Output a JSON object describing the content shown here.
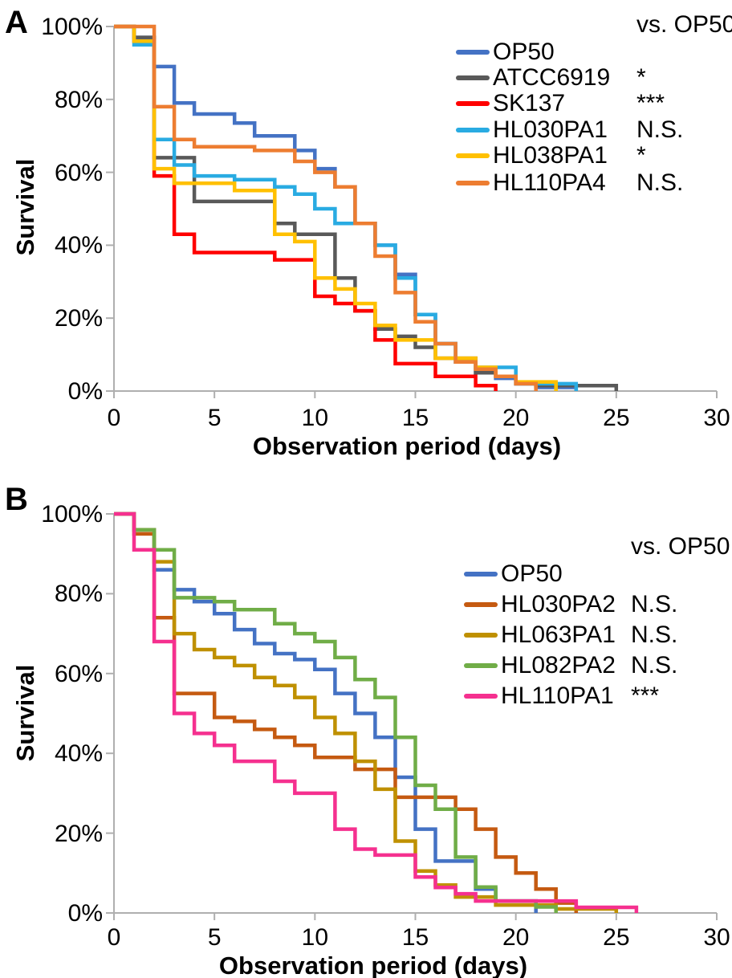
{
  "figure_title": "",
  "chart_data": [
    {
      "panel_label": "A",
      "type": "line",
      "subtype": "kaplan-meier-step-survival",
      "xlabel": "Observation period (days)",
      "ylabel": "Survival",
      "legend_header": "vs. OP50",
      "xlim": [
        0,
        30
      ],
      "x_tick_labels": [
        "0",
        "5",
        "10",
        "15",
        "20",
        "25",
        "30"
      ],
      "x_tick_values": [
        0,
        5,
        10,
        15,
        20,
        25,
        30
      ],
      "y_tick_labels": [
        "100%",
        "80%",
        "60%",
        "40%",
        "20%",
        "0%"
      ],
      "y_tick_values": [
        100,
        80,
        60,
        40,
        20,
        0
      ],
      "grid": false,
      "legend_position": "top-right",
      "series": [
        {
          "name": "OP50",
          "color": "#4472C4",
          "significance_vs_op50": "",
          "points_day_pct": [
            [
              0,
              100
            ],
            [
              1,
              97
            ],
            [
              2,
              89
            ],
            [
              3,
              79
            ],
            [
              4,
              76
            ],
            [
              6,
              73.5
            ],
            [
              7,
              70
            ],
            [
              9,
              66
            ],
            [
              10,
              61
            ],
            [
              11,
              56
            ],
            [
              12,
              46
            ],
            [
              13,
              40
            ],
            [
              14,
              32
            ],
            [
              15,
              21
            ],
            [
              16,
              13
            ],
            [
              17,
              8
            ],
            [
              18,
              5
            ],
            [
              19,
              3.5
            ],
            [
              20,
              2
            ],
            [
              21,
              1
            ],
            [
              23,
              0
            ]
          ]
        },
        {
          "name": "ATCC6919",
          "color": "#595959",
          "significance_vs_op50": "*",
          "points_day_pct": [
            [
              0,
              100
            ],
            [
              1,
              97
            ],
            [
              2,
              64
            ],
            [
              4,
              52
            ],
            [
              8,
              46
            ],
            [
              9,
              43
            ],
            [
              11,
              31
            ],
            [
              12,
              22
            ],
            [
              13,
              17
            ],
            [
              14,
              15
            ],
            [
              15,
              12
            ],
            [
              16,
              9
            ],
            [
              18,
              5
            ],
            [
              19,
              4
            ],
            [
              20,
              2
            ],
            [
              21,
              1.5
            ],
            [
              25,
              0
            ]
          ]
        },
        {
          "name": "SK137",
          "color": "#FF0000",
          "significance_vs_op50": "***",
          "points_day_pct": [
            [
              0,
              100
            ],
            [
              1,
              96
            ],
            [
              2,
              59
            ],
            [
              3,
              43
            ],
            [
              4,
              38
            ],
            [
              8,
              36
            ],
            [
              10,
              26
            ],
            [
              11,
              24
            ],
            [
              12,
              22
            ],
            [
              13,
              14
            ],
            [
              14,
              7.5
            ],
            [
              16,
              4
            ],
            [
              18,
              1.5
            ],
            [
              19,
              0
            ]
          ]
        },
        {
          "name": "HL030PA1",
          "color": "#29ABE2",
          "significance_vs_op50": "N.S.",
          "points_day_pct": [
            [
              0,
              100
            ],
            [
              1,
              95
            ],
            [
              2,
              69
            ],
            [
              3,
              62
            ],
            [
              4,
              59
            ],
            [
              6,
              58
            ],
            [
              8,
              56
            ],
            [
              9,
              54
            ],
            [
              10,
              50
            ],
            [
              11,
              46
            ],
            [
              13,
              40
            ],
            [
              14,
              31
            ],
            [
              15,
              21
            ],
            [
              16,
              13
            ],
            [
              17,
              8
            ],
            [
              18,
              6.5
            ],
            [
              20,
              2
            ],
            [
              23,
              0
            ]
          ]
        },
        {
          "name": "HL038PA1",
          "color": "#FFC000",
          "significance_vs_op50": "*",
          "points_day_pct": [
            [
              0,
              100
            ],
            [
              1,
              96
            ],
            [
              2,
              61
            ],
            [
              3,
              57
            ],
            [
              6,
              55
            ],
            [
              8,
              43
            ],
            [
              9,
              41
            ],
            [
              10,
              31
            ],
            [
              11,
              28
            ],
            [
              12,
              24
            ],
            [
              13,
              18
            ],
            [
              14,
              14
            ],
            [
              16,
              9
            ],
            [
              18,
              6.5
            ],
            [
              19,
              4
            ],
            [
              20,
              2.5
            ],
            [
              22,
              0
            ]
          ]
        },
        {
          "name": "HL110PA4",
          "color": "#ED7D31",
          "significance_vs_op50": "N.S.",
          "points_day_pct": [
            [
              0,
              100
            ],
            [
              2,
              78
            ],
            [
              3,
              69
            ],
            [
              4,
              67
            ],
            [
              7,
              66
            ],
            [
              9,
              63
            ],
            [
              10,
              60
            ],
            [
              11,
              56
            ],
            [
              12,
              46
            ],
            [
              13,
              37
            ],
            [
              14,
              27
            ],
            [
              15,
              19
            ],
            [
              16,
              13
            ],
            [
              17,
              8
            ],
            [
              18,
              6
            ],
            [
              19,
              4
            ],
            [
              20,
              2
            ],
            [
              21,
              0
            ]
          ]
        }
      ]
    },
    {
      "panel_label": "B",
      "type": "line",
      "subtype": "kaplan-meier-step-survival",
      "xlabel": "Observation period (days)",
      "ylabel": "Survival",
      "legend_header": "vs. OP50",
      "xlim": [
        0,
        30
      ],
      "x_tick_labels": [
        "0",
        "5",
        "10",
        "15",
        "20",
        "25",
        "30"
      ],
      "x_tick_values": [
        0,
        5,
        10,
        15,
        20,
        25,
        30
      ],
      "y_tick_labels": [
        "100%",
        "80%",
        "60%",
        "40%",
        "20%",
        "0%"
      ],
      "y_tick_values": [
        100,
        80,
        60,
        40,
        20,
        0
      ],
      "grid": false,
      "legend_position": "top-right",
      "series": [
        {
          "name": "OP50",
          "color": "#4472C4",
          "significance_vs_op50": "",
          "points_day_pct": [
            [
              0,
              100
            ],
            [
              1,
              96
            ],
            [
              2,
              86
            ],
            [
              3,
              81
            ],
            [
              4,
              78
            ],
            [
              5,
              75
            ],
            [
              6,
              71
            ],
            [
              7,
              67.5
            ],
            [
              8,
              65
            ],
            [
              9,
              63.5
            ],
            [
              10,
              61
            ],
            [
              11,
              55
            ],
            [
              12,
              50
            ],
            [
              13,
              44
            ],
            [
              14,
              34
            ],
            [
              15,
              21
            ],
            [
              16,
              13
            ],
            [
              18,
              6
            ],
            [
              19,
              3
            ],
            [
              21,
              0
            ]
          ]
        },
        {
          "name": "HL030PA2",
          "color": "#C55A11",
          "significance_vs_op50": "N.S.",
          "points_day_pct": [
            [
              0,
              100
            ],
            [
              1,
              95
            ],
            [
              2,
              74
            ],
            [
              3,
              55
            ],
            [
              5,
              49
            ],
            [
              6,
              48
            ],
            [
              7,
              46
            ],
            [
              8,
              44
            ],
            [
              9,
              42
            ],
            [
              10,
              39
            ],
            [
              12,
              36
            ],
            [
              14,
              29
            ],
            [
              17,
              26
            ],
            [
              18,
              21
            ],
            [
              19,
              14
            ],
            [
              20,
              10
            ],
            [
              21,
              6
            ],
            [
              22,
              2.5
            ],
            [
              23,
              0
            ]
          ]
        },
        {
          "name": "HL063PA1",
          "color": "#BF9000",
          "significance_vs_op50": "N.S.",
          "points_day_pct": [
            [
              0,
              100
            ],
            [
              1,
              96
            ],
            [
              2,
              88
            ],
            [
              3,
              70
            ],
            [
              4,
              66
            ],
            [
              5,
              64
            ],
            [
              6,
              62
            ],
            [
              7,
              59
            ],
            [
              8,
              57
            ],
            [
              9,
              54
            ],
            [
              10,
              49
            ],
            [
              11,
              45
            ],
            [
              12,
              38
            ],
            [
              13,
              31
            ],
            [
              14,
              18
            ],
            [
              15,
              10.5
            ],
            [
              16,
              7
            ],
            [
              17,
              4
            ],
            [
              19,
              2
            ],
            [
              22,
              1
            ],
            [
              25,
              0
            ]
          ]
        },
        {
          "name": "HL082PA2",
          "color": "#70AD47",
          "significance_vs_op50": "N.S.",
          "points_day_pct": [
            [
              0,
              100
            ],
            [
              1,
              96
            ],
            [
              2,
              91
            ],
            [
              3,
              79
            ],
            [
              5,
              78
            ],
            [
              6,
              76
            ],
            [
              8,
              72.5
            ],
            [
              9,
              70
            ],
            [
              10,
              68
            ],
            [
              11,
              64
            ],
            [
              12,
              58.5
            ],
            [
              13,
              54
            ],
            [
              14,
              44
            ],
            [
              15,
              32
            ],
            [
              16,
              26
            ],
            [
              17,
              14
            ],
            [
              18,
              6.5
            ],
            [
              19,
              3
            ],
            [
              21,
              1.5
            ],
            [
              22,
              0
            ]
          ]
        },
        {
          "name": "HL110PA1",
          "color": "#F5308F",
          "significance_vs_op50": "***",
          "points_day_pct": [
            [
              0,
              100
            ],
            [
              1,
              91
            ],
            [
              2,
              68
            ],
            [
              3,
              50
            ],
            [
              4,
              45
            ],
            [
              5,
              42
            ],
            [
              6,
              38
            ],
            [
              8,
              33
            ],
            [
              9,
              30
            ],
            [
              11,
              21
            ],
            [
              12,
              16
            ],
            [
              13,
              14.5
            ],
            [
              15,
              9
            ],
            [
              16,
              6.4
            ],
            [
              17,
              4.8
            ],
            [
              18,
              3
            ],
            [
              23,
              1.4
            ],
            [
              26,
              0
            ]
          ]
        }
      ]
    }
  ],
  "styles": {
    "axis_color": "#AFAFAF",
    "text_color": "#000000",
    "curve_width": 4.5
  }
}
